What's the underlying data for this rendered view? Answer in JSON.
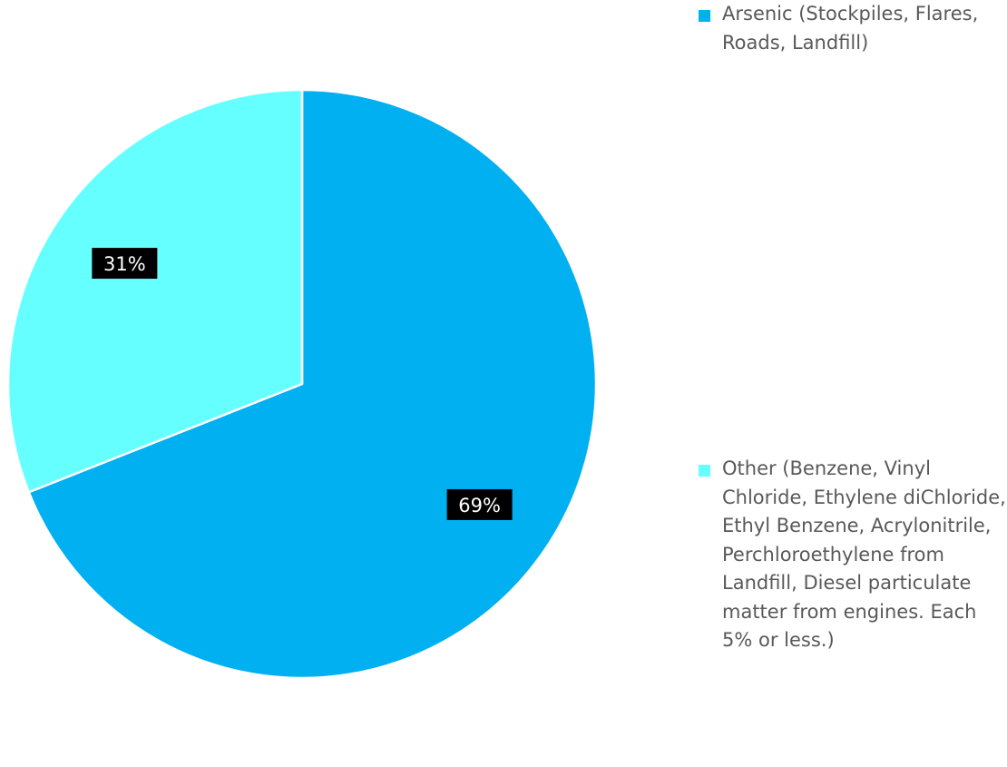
{
  "chart_data": {
    "type": "pie",
    "categories": [
      "Arsenic (Stockpiles, Flares, Roads, Landfill)",
      "Other (Benzene, Vinyl Chloride, Ethylene diChloride, Ethyl Benzene, Acrylonitrile, Perchloroethylene from Landfill, Diesel particulate matter from engines. Each 5% or less.)"
    ],
    "values": [
      69,
      31
    ],
    "data_labels": [
      "69%",
      "31%"
    ],
    "colors": [
      "#00B0F0",
      "#66FFFF"
    ],
    "title": "",
    "legend_position": "right",
    "start_angle": "top, clockwise"
  }
}
